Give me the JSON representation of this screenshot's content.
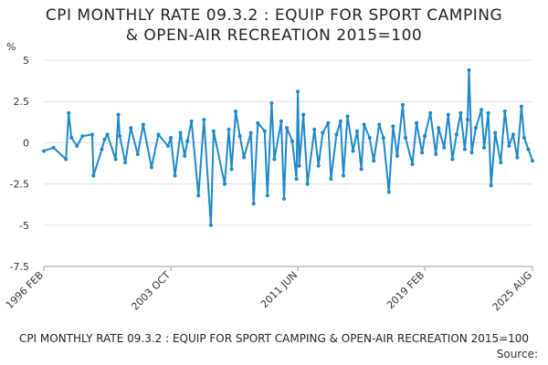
{
  "title_line1": "CPI MONTHLY RATE 09.3.2 : EQUIP FOR SPORT CAMPING",
  "title_line2": "& OPEN-AIR RECREATION 2015=100",
  "footer": {
    "title": "CPI MONTHLY RATE 09.3.2 : EQUIP FOR SPORT CAMPING & OPEN-AIR RECREATION 2015=100",
    "source": "Source:"
  },
  "colors": {
    "series": "#1f88c9",
    "grid": "#dddddd",
    "axis": "#999999"
  },
  "chart_data": {
    "type": "line",
    "title": "CPI MONTHLY RATE 09.3.2 : EQUIP FOR SPORT CAMPING & OPEN-AIR RECREATION 2015=100",
    "ylabel": "%",
    "xlabel": "",
    "ylim": [
      -7.5,
      5
    ],
    "yticks": [
      5,
      2.5,
      0,
      -2.5,
      -5,
      -7.5
    ],
    "ytick_labels": [
      "5",
      "2.5",
      "0",
      "-2.5",
      "-5",
      "-7.5"
    ],
    "xlim": [
      "1996 FEB",
      "2025 AUG"
    ],
    "xticks": [
      "1996 FEB",
      "2003 OCT",
      "2011 JUN",
      "2019 FEB",
      "2025 AUG"
    ],
    "grid": true,
    "legend": "none",
    "series": [
      {
        "x": [
          "1996 FEB",
          "1996 SEP",
          "1997 JUN",
          "1997 AUG",
          "1997 OCT",
          "1998 FEB",
          "1998 JUN",
          "1999 JAN",
          "1999 FEB",
          "1999 AUG",
          "1999 OCT",
          "1999 DEC",
          "2000 JUN",
          "2000 AUG",
          "2000 SEP",
          "2001 JAN",
          "2001 MAY",
          "2001 OCT",
          "2002 FEB",
          "2002 AUG",
          "2003 JAN",
          "2003 AUG",
          "2003 OCT",
          "2004 JAN",
          "2004 MAY",
          "2004 AUG",
          "2004 OCT",
          "2005 JAN",
          "2005 JUN",
          "2005 OCT",
          "2006 MAR",
          "2006 MAY",
          "2007 JAN",
          "2007 APR",
          "2007 JUN",
          "2007 SEP",
          "2007 DEC",
          "2008 MAR",
          "2008 AUG",
          "2008 OCT",
          "2009 JAN",
          "2009 JUN",
          "2009 AUG",
          "2009 NOV",
          "2010 JAN",
          "2010 JUN",
          "2010 AUG",
          "2010 OCT",
          "2011 FEB",
          "2011 MAY",
          "2011 JUN",
          "2011 JUL",
          "2011 OCT",
          "2012 JAN",
          "2012 JUN",
          "2012 SEP",
          "2012 DEC",
          "2013 APR",
          "2013 JUN",
          "2013 OCT",
          "2014 JAN",
          "2014 MAR",
          "2014 JUN",
          "2014 OCT",
          "2015 JAN",
          "2015 APR",
          "2015 JUN",
          "2015 OCT",
          "2016 JAN",
          "2016 MAY",
          "2016 AUG",
          "2016 DEC",
          "2017 MAR",
          "2017 JUN",
          "2017 OCT",
          "2017 DEC",
          "2018 MAY",
          "2018 AUG",
          "2018 DEC",
          "2019 FEB",
          "2019 JUN",
          "2019 OCT",
          "2019 DEC",
          "2020 APR",
          "2020 JUL",
          "2020 OCT",
          "2021 JAN",
          "2021 APR",
          "2021 JUL",
          "2021 SEP",
          "2021 OCT",
          "2021 DEC",
          "2022 MAR",
          "2022 JUL",
          "2022 SEP",
          "2022 DEC",
          "2023 FEB",
          "2023 MAY",
          "2023 SEP",
          "2023 DEC",
          "2024 MAR",
          "2024 JUN",
          "2024 SEP",
          "2024 DEC",
          "2025 FEB",
          "2025 MAY",
          "2025 AUG"
        ],
        "values": [
          -0.5,
          -0.3,
          -1.0,
          1.8,
          0.3,
          -0.2,
          0.4,
          0.5,
          -2.0,
          -0.4,
          0.2,
          0.5,
          -1.0,
          1.7,
          0.4,
          -1.2,
          0.9,
          -0.7,
          1.1,
          -1.5,
          0.5,
          -0.2,
          0.3,
          -2.0,
          0.6,
          -0.8,
          0.1,
          1.3,
          -3.2,
          1.4,
          -5.0,
          0.7,
          -2.5,
          0.8,
          -1.6,
          1.9,
          0.4,
          -0.9,
          0.6,
          -3.7,
          1.2,
          0.7,
          -3.2,
          2.4,
          -1.0,
          1.3,
          -3.4,
          0.9,
          0.1,
          -2.2,
          3.1,
          -1.4,
          1.7,
          -2.5,
          0.8,
          -1.4,
          0.6,
          1.2,
          -2.2,
          0.5,
          1.3,
          -2.0,
          1.6,
          -0.5,
          0.7,
          -1.6,
          1.1,
          0.3,
          -1.1,
          1.1,
          0.3,
          -3.0,
          1.0,
          -0.8,
          2.3,
          0.3,
          -1.3,
          1.2,
          -0.6,
          0.4,
          1.8,
          -0.7,
          0.9,
          -0.3,
          1.7,
          -1.0,
          0.5,
          1.8,
          -0.4,
          1.4,
          4.4,
          -0.6,
          0.9,
          2.0,
          -0.3,
          1.8,
          -2.6,
          0.6,
          -1.2,
          1.9,
          -0.2,
          0.5,
          -0.9,
          2.2,
          0.3,
          -0.4,
          -1.1
        ]
      }
    ]
  }
}
